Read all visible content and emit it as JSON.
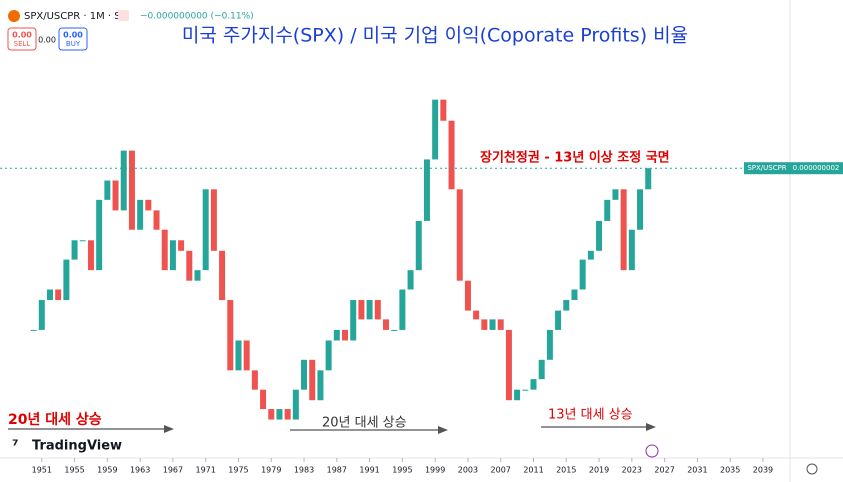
{
  "chart_data": {
    "type": "candlestick",
    "symbol": "SPX/USCPR · 1M · SP",
    "change": "−0.000000000 (−0.11%)",
    "sell_price": "0.00",
    "sell_label": "SELL",
    "spread": "0.00",
    "buy_price": "0.00",
    "buy_label": "BUY",
    "title": "미국 주가지수(SPX) / 미국 기업 이익(Coporate Profits) 비율",
    "annotations": [
      "장기천정권 - 13년 이상 조정 국면",
      "20년 대세 상승",
      "20년 대세 상승",
      "13년 대세 상승"
    ],
    "brand": "TradingView",
    "last_price_name": "SPX/USCPR",
    "last_price_label": "0.000000002",
    "up_color": "#26a69a",
    "down_color": "#ef5350",
    "x": [
      1950,
      1951,
      1952,
      1953,
      1954,
      1955,
      1956,
      1957,
      1958,
      1959,
      1960,
      1961,
      1962,
      1963,
      1964,
      1965,
      1966,
      1967,
      1968,
      1969,
      1970,
      1971,
      1972,
      1973,
      1974,
      1975,
      1976,
      1977,
      1978,
      1979,
      1980,
      1981,
      1982,
      1983,
      1984,
      1985,
      1986,
      1987,
      1988,
      1989,
      1990,
      1991,
      1992,
      1993,
      1994,
      1995,
      1996,
      1997,
      1998,
      1999,
      2000,
      2001,
      2002,
      2003,
      2004,
      2005,
      2006,
      2007,
      2008,
      2009,
      2010,
      2011,
      2012,
      2013,
      2014,
      2015,
      2016,
      2017,
      2018,
      2019,
      2020,
      2021,
      2022,
      2023,
      2024,
      2025
    ],
    "values": [
      1.08e-09,
      1.25e-09,
      1.31e-09,
      1.25e-09,
      1.48e-09,
      1.59e-09,
      1.59e-09,
      1.42e-09,
      1.82e-09,
      1.93e-09,
      1.76e-09,
      2.1e-09,
      1.65e-09,
      1.82e-09,
      1.76e-09,
      1.65e-09,
      1.42e-09,
      1.59e-09,
      1.53e-09,
      1.36e-09,
      1.42e-09,
      1.88e-09,
      1.53e-09,
      1.25e-09,
      8.5e-10,
      1.02e-09,
      8.5e-10,
      7.4e-10,
      6.3e-10,
      5.7e-10,
      6.3e-10,
      5.7e-10,
      7.4e-10,
      9.1e-10,
      6.8e-10,
      8.5e-10,
      1.02e-09,
      1.08e-09,
      1.02e-09,
      1.25e-09,
      1.14e-09,
      1.25e-09,
      1.14e-09,
      1.08e-09,
      1.08e-09,
      1.31e-09,
      1.42e-09,
      1.7e-09,
      2.05e-09,
      2.39e-09,
      2.27e-09,
      1.88e-09,
      1.36e-09,
      1.19e-09,
      1.14e-09,
      1.08e-09,
      1.14e-09,
      1.08e-09,
      6.8e-10,
      7.4e-10,
      7.4e-10,
      8e-10,
      9.1e-10,
      1.08e-09,
      1.19e-09,
      1.25e-09,
      1.31e-09,
      1.48e-09,
      1.53e-09,
      1.7e-09,
      1.82e-09,
      1.88e-09,
      1.42e-09,
      1.65e-09,
      1.88e-09,
      2e-09
    ],
    "xlim": [
      1945.9,
      2042.3
    ],
    "xticks": [
      1951,
      1955,
      1959,
      1963,
      1967,
      1971,
      1975,
      1979,
      1983,
      1987,
      1991,
      1995,
      1999,
      2003,
      2007,
      2011,
      2015,
      2019,
      2023,
      2027,
      2031,
      2035,
      2039
    ],
    "ylim": [
      3.4e-10,
      2.9e-09
    ]
  }
}
